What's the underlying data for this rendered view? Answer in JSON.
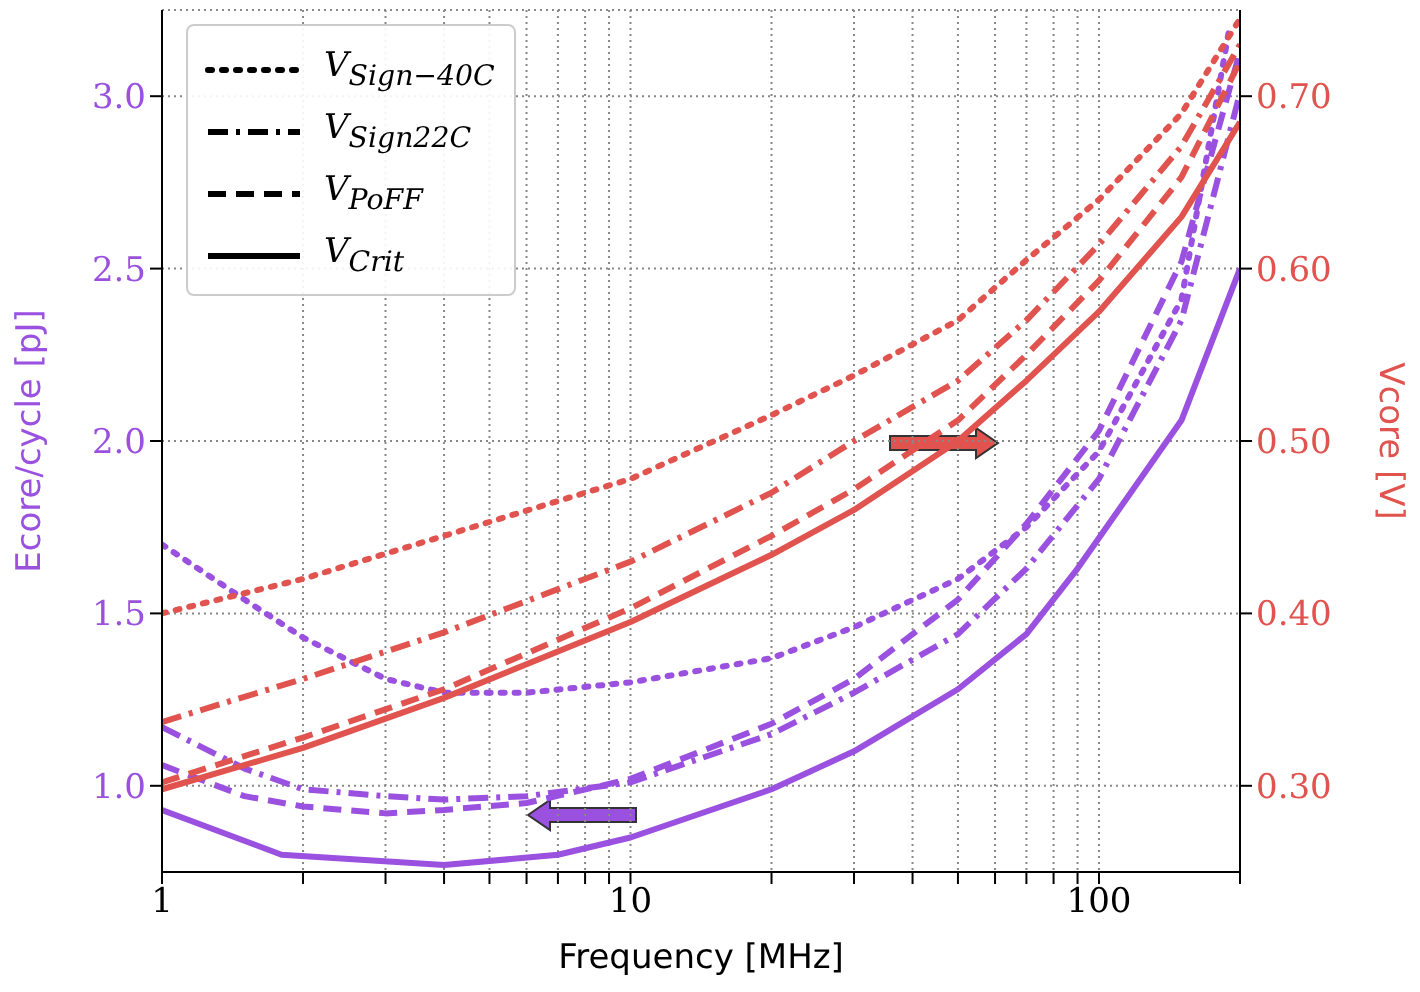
{
  "chart_data": {
    "type": "line",
    "xlabel": "Frequency [MHz]",
    "ylabel": "Ecore/cycle [pJ]",
    "y2label": "Vcore [V]",
    "log": "x",
    "grid": true,
    "marker": "none",
    "annotations": [
      "V$_{Sign−40C}$",
      "V$_{Sign22C}$",
      "V$_{PoFF}$",
      "V$_{Crit}$"
    ],
    "xlim": [
      1,
      200
    ],
    "xticks": [
      1,
      {
        "value": 2,
        "label": null
      },
      {
        "value": 3,
        "label": null
      },
      {
        "value": 4,
        "label": null
      },
      {
        "value": 5,
        "label": null
      },
      {
        "value": 6,
        "label": null
      },
      {
        "value": 7,
        "label": null
      },
      {
        "value": 8,
        "label": null
      },
      {
        "value": 9,
        "label": null
      },
      10,
      {
        "value": 20,
        "label": null
      },
      {
        "value": 30,
        "label": null
      },
      {
        "value": 40,
        "label": null
      },
      {
        "value": 50,
        "label": null
      },
      {
        "value": 60,
        "label": null
      },
      {
        "value": 70,
        "label": null
      },
      {
        "value": 80,
        "label": null
      },
      {
        "value": 90,
        "label": null
      },
      100,
      {
        "value": 200,
        "label": null
      }
    ],
    "ylim": [
      0.75,
      3.25
    ],
    "yticks": [
      {
        "value": 1,
        "label": "1.0"
      },
      1.5,
      {
        "value": 2,
        "label": "2.0"
      },
      2.5,
      {
        "value": 3,
        "label": "3.0"
      }
    ],
    "y2lim": [
      0.25,
      0.75
    ],
    "y2ticks": [
      {
        "value": 0.3,
        "label": "0.30"
      },
      {
        "value": 0.4,
        "label": "0.40"
      },
      {
        "value": 0.5,
        "label": "0.50"
      },
      {
        "value": 0.6,
        "label": "0.60"
      },
      {
        "value": 0.7,
        "label": "0.70"
      }
    ],
    "series": [
      {
        "color": "#9b51e0",
        "line_style": "dotted",
        "x": [
          1,
          1.5,
          2,
          3,
          4,
          6,
          10,
          20,
          30,
          50,
          70,
          100,
          150,
          190
        ],
        "values": [
          1.7,
          1.54,
          1.43,
          1.31,
          1.27,
          1.27,
          1.3,
          1.37,
          1.46,
          1.6,
          1.75,
          1.97,
          2.41,
          3.2
        ]
      },
      {
        "color": "#9b51e0",
        "line_style": "dashdot",
        "x": [
          1,
          1.5,
          2,
          3,
          4,
          6,
          10,
          20,
          30,
          50,
          70,
          100,
          150,
          200
        ],
        "values": [
          1.17,
          1.05,
          0.99,
          0.97,
          0.96,
          0.97,
          1.01,
          1.15,
          1.27,
          1.44,
          1.63,
          1.89,
          2.35,
          3.01
        ]
      },
      {
        "color": "#9b51e0",
        "line_style": "dashed",
        "x": [
          1,
          1.5,
          2,
          3,
          4,
          6,
          10,
          20,
          30,
          50,
          70,
          100,
          150,
          200
        ],
        "values": [
          1.06,
          0.97,
          0.94,
          0.92,
          0.93,
          0.95,
          1.02,
          1.18,
          1.31,
          1.54,
          1.76,
          2.03,
          2.52,
          3.13
        ]
      },
      {
        "color": "#9b51e0",
        "line_style": "solid",
        "x": [
          1,
          1.8,
          4,
          7,
          10,
          20,
          30,
          50,
          70,
          90,
          150,
          200
        ],
        "values": [
          0.93,
          0.8,
          0.77,
          0.8,
          0.85,
          0.99,
          1.1,
          1.28,
          1.44,
          1.63,
          2.06,
          2.5
        ]
      },
      {
        "color": "#e0534e",
        "line_style": "dotted",
        "axis": "y2",
        "x": [
          1,
          2,
          4,
          10,
          20,
          30,
          50,
          70,
          100,
          150,
          200
        ],
        "values": [
          0.4,
          0.42,
          0.445,
          0.478,
          0.515,
          0.538,
          0.57,
          0.605,
          0.64,
          0.69,
          0.745
        ]
      },
      {
        "color": "#e0534e",
        "line_style": "dashdot",
        "axis": "y2",
        "x": [
          1,
          2,
          4,
          10,
          20,
          30,
          50,
          70,
          100,
          150,
          200
        ],
        "values": [
          0.337,
          0.362,
          0.389,
          0.43,
          0.47,
          0.5,
          0.535,
          0.57,
          0.614,
          0.671,
          0.73
        ]
      },
      {
        "color": "#e0534e",
        "line_style": "dashed",
        "axis": "y2",
        "x": [
          1,
          2,
          4,
          10,
          20,
          30,
          50,
          70,
          100,
          150,
          200
        ],
        "values": [
          0.302,
          0.328,
          0.356,
          0.403,
          0.445,
          0.472,
          0.512,
          0.55,
          0.593,
          0.653,
          0.72
        ]
      },
      {
        "color": "#e0534e",
        "line_style": "solid",
        "axis": "y2",
        "x": [
          1,
          2,
          4,
          10,
          20,
          30,
          50,
          70,
          100,
          150,
          200
        ],
        "values": [
          0.298,
          0.322,
          0.351,
          0.395,
          0.434,
          0.46,
          0.5,
          0.535,
          0.575,
          0.63,
          0.685
        ]
      }
    ]
  }
}
